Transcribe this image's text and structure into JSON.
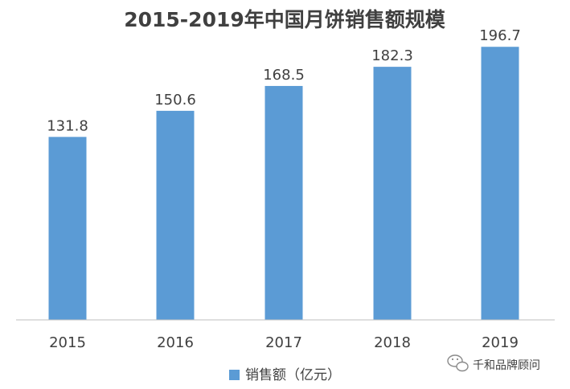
{
  "chart_data": {
    "type": "bar",
    "title": "2015-2019年中国月饼销售额规模",
    "categories": [
      "2015",
      "2016",
      "2017",
      "2018",
      "2019"
    ],
    "series": [
      {
        "name": "销售额（亿元）",
        "values": [
          131.8,
          150.6,
          168.5,
          182.3,
          196.7
        ]
      }
    ],
    "ylim": [
      0,
      220
    ],
    "grid": false,
    "legend_position": "bottom",
    "bar_color": "#5b9bd5"
  },
  "watermark": {
    "text": "千和品牌顾问",
    "icon": "wechat-icon"
  }
}
